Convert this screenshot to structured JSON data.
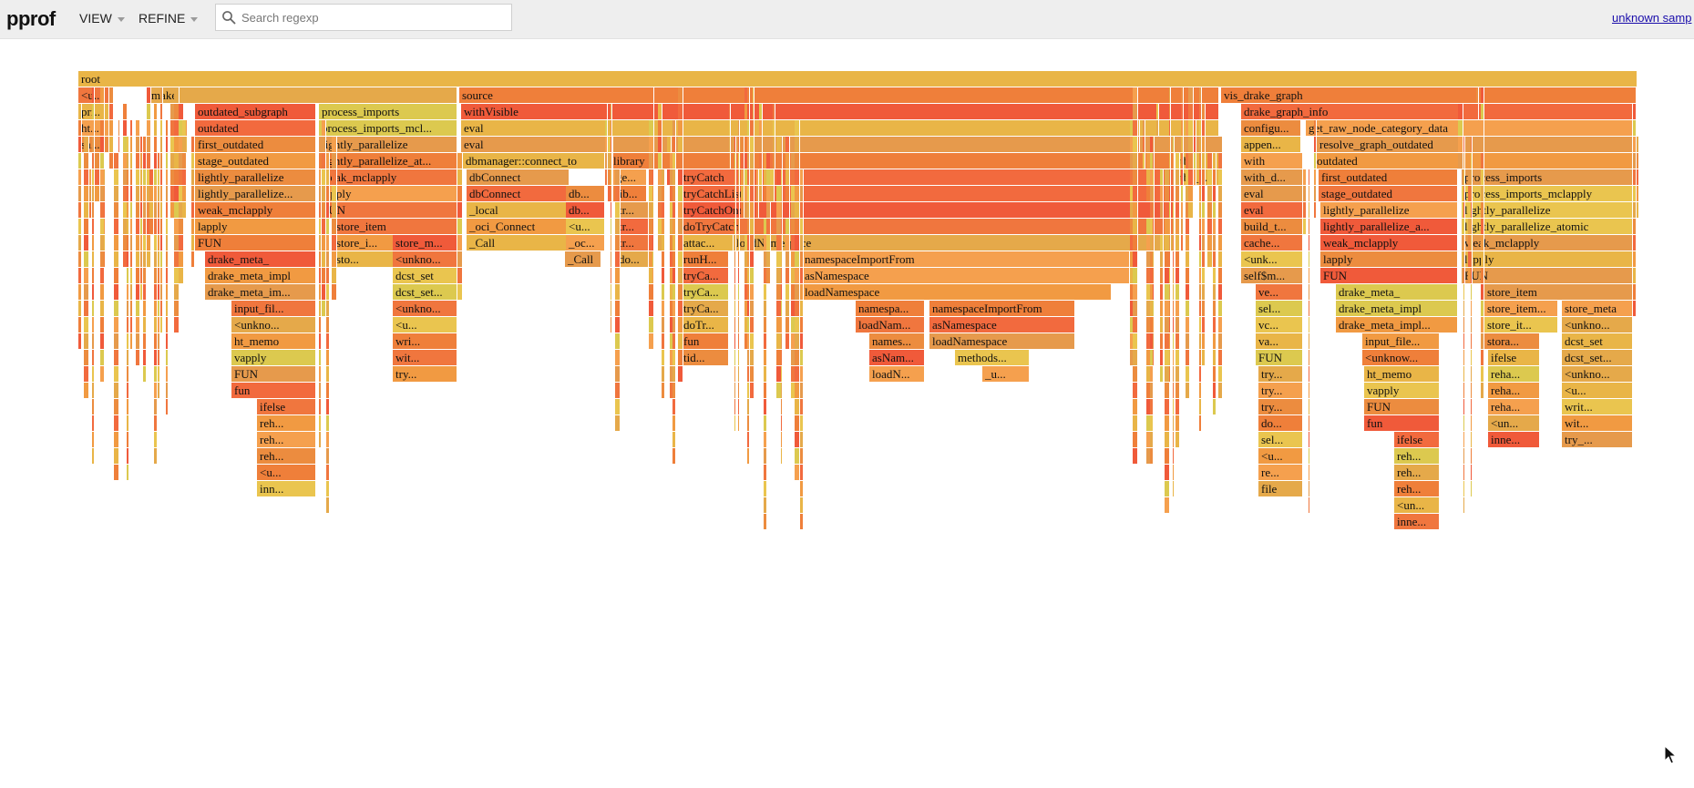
{
  "app": {
    "title": "pprof"
  },
  "menus": [
    {
      "label": "VIEW"
    },
    {
      "label": "REFINE"
    }
  ],
  "search": {
    "placeholder": "Search regexp",
    "value": ""
  },
  "sample_link": "unknown samp",
  "palette": [
    "#e5a94a",
    "#ec8c3f",
    "#f26a3e",
    "#f19a42",
    "#e9b547",
    "#ef7f3a",
    "#f05a3a",
    "#dcc94f",
    "#f5a04e",
    "#e69a4c",
    "#f0763e",
    "#eac54f"
  ],
  "flame_rows": [
    [
      "root"
    ],
    [
      "<u...",
      "make",
      "source",
      "vis_drake_graph"
    ],
    [
      "pri...",
      "outdated_subgraph",
      "process_imports",
      "withVisible",
      "drake_graph_info"
    ],
    [
      "ht...",
      "outdated",
      "process_imports_mcl...",
      "eval",
      "configu...",
      "get_raw_node_category_data"
    ],
    [
      "sa...",
      "first_outdated",
      "lightly_parallelize",
      "eval",
      "appen...",
      "resolve_graph_outdated"
    ],
    [
      "stage_outdated",
      "lightly_parallelize_at...",
      "dbmanager::connect_to",
      "library",
      "tbl",
      "with",
      "outdated"
    ],
    [
      "lightly_parallelize",
      "weak_mclapply",
      "dbConnect",
      "ge...",
      "tryCatch",
      "tbl_...",
      "with_d...",
      "first_outdated",
      "process_imports"
    ],
    [
      "lightly_parallelize...",
      "lapply",
      "dbConnect",
      "db...",
      "lib...",
      "tryCatchList",
      "eval",
      "stage_outdated",
      "process_imports_mclapply"
    ],
    [
      "weak_mclapply",
      "FUN",
      "_local",
      "db...",
      "tr...",
      "tryCatchOne",
      "eval",
      "lightly_parallelize",
      "lightly_parallelize"
    ],
    [
      "lapply",
      "store_item",
      "_oci_Connect",
      "<u...",
      "tr...",
      "doTryCatch",
      "build_t...",
      "lightly_parallelize_a...",
      "lightly_parallelize_atomic"
    ],
    [
      "FUN",
      "store_i...",
      "store_m...",
      "_Call",
      "_oc...",
      "tr...",
      "attac...",
      "loadNamespace",
      "cache...",
      "weak_mclapply",
      "weak_mclapply"
    ],
    [
      "drake_meta_",
      "sto...",
      "<unkno...",
      "_Call",
      "do...",
      "runH...",
      "namespaceImportFrom",
      "<unk...",
      "lapply",
      "lapply"
    ],
    [
      "drake_meta_impl",
      "dcst_set",
      "tryCa...",
      "asNamespace",
      "self$m...",
      "FUN",
      "FUN"
    ],
    [
      "drake_meta_im...",
      "dcst_set...",
      "tryCa...",
      "loadNamespace",
      "ve...",
      "drake_meta_",
      "store_item"
    ],
    [
      "input_fil...",
      "<unkno...",
      "tryCa...",
      "namespa...",
      "namespaceImportFrom",
      "sel...",
      "drake_meta_impl",
      "store_item...",
      "store_meta"
    ],
    [
      "<unkno...",
      "<u...",
      "doTr...",
      "loadNam...",
      "asNamespace",
      "vc...",
      "drake_meta_impl...",
      "store_it...",
      "<unkno..."
    ],
    [
      "ht_memo",
      "wri...",
      "fun",
      "names...",
      "loadNamespace",
      "va...",
      "input_file...",
      "stora...",
      "dcst_set"
    ],
    [
      "vapply",
      "wit...",
      "tid...",
      "asNam...",
      "methods...",
      "FUN",
      "<unknow...",
      "ifelse",
      "dcst_set..."
    ],
    [
      "FUN",
      "try...",
      "loadN...",
      "_u...",
      "try...",
      "ht_memo",
      "reha...",
      "<unkno..."
    ],
    [
      "fun",
      "try...",
      "vapply",
      "reha...",
      "<u..."
    ],
    [
      "ifelse",
      "try...",
      "FUN",
      "reha...",
      "writ..."
    ],
    [
      "reh...",
      "do...",
      "fun",
      "<un...",
      "wit..."
    ],
    [
      "reh...",
      "sel...",
      "ifelse",
      "inne...",
      "try_..."
    ],
    [
      "reh...",
      "<u...",
      "reh..."
    ],
    [
      "<u...",
      "re...",
      "reh..."
    ],
    [
      "inn...",
      "file",
      "reh..."
    ],
    [
      "<un..."
    ],
    [
      "inne..."
    ]
  ]
}
